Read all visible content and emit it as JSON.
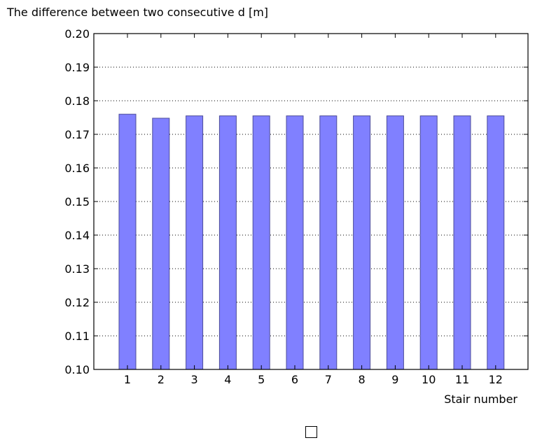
{
  "chart_data": {
    "type": "bar",
    "title": "",
    "ylabel": "The difference between two consecutive d [m]",
    "xlabel": "Stair number",
    "categories": [
      "1",
      "2",
      "3",
      "4",
      "5",
      "6",
      "7",
      "8",
      "9",
      "10",
      "11",
      "12"
    ],
    "values": [
      0.176,
      0.1748,
      0.1755,
      0.1755,
      0.1755,
      0.1755,
      0.1755,
      0.1755,
      0.1755,
      0.1755,
      0.1755,
      0.1755
    ],
    "ylim": [
      0.1,
      0.2
    ],
    "yticks": [
      "0.10",
      "0.11",
      "0.12",
      "0.13",
      "0.14",
      "0.15",
      "0.16",
      "0.17",
      "0.18",
      "0.19",
      "0.20"
    ],
    "grid": "horizontal dotted",
    "bar_color": "#8080ff",
    "bar_edge_color": "#4d4d99",
    "legend": {
      "placement": "bottom-center",
      "entries": [
        ""
      ]
    }
  }
}
